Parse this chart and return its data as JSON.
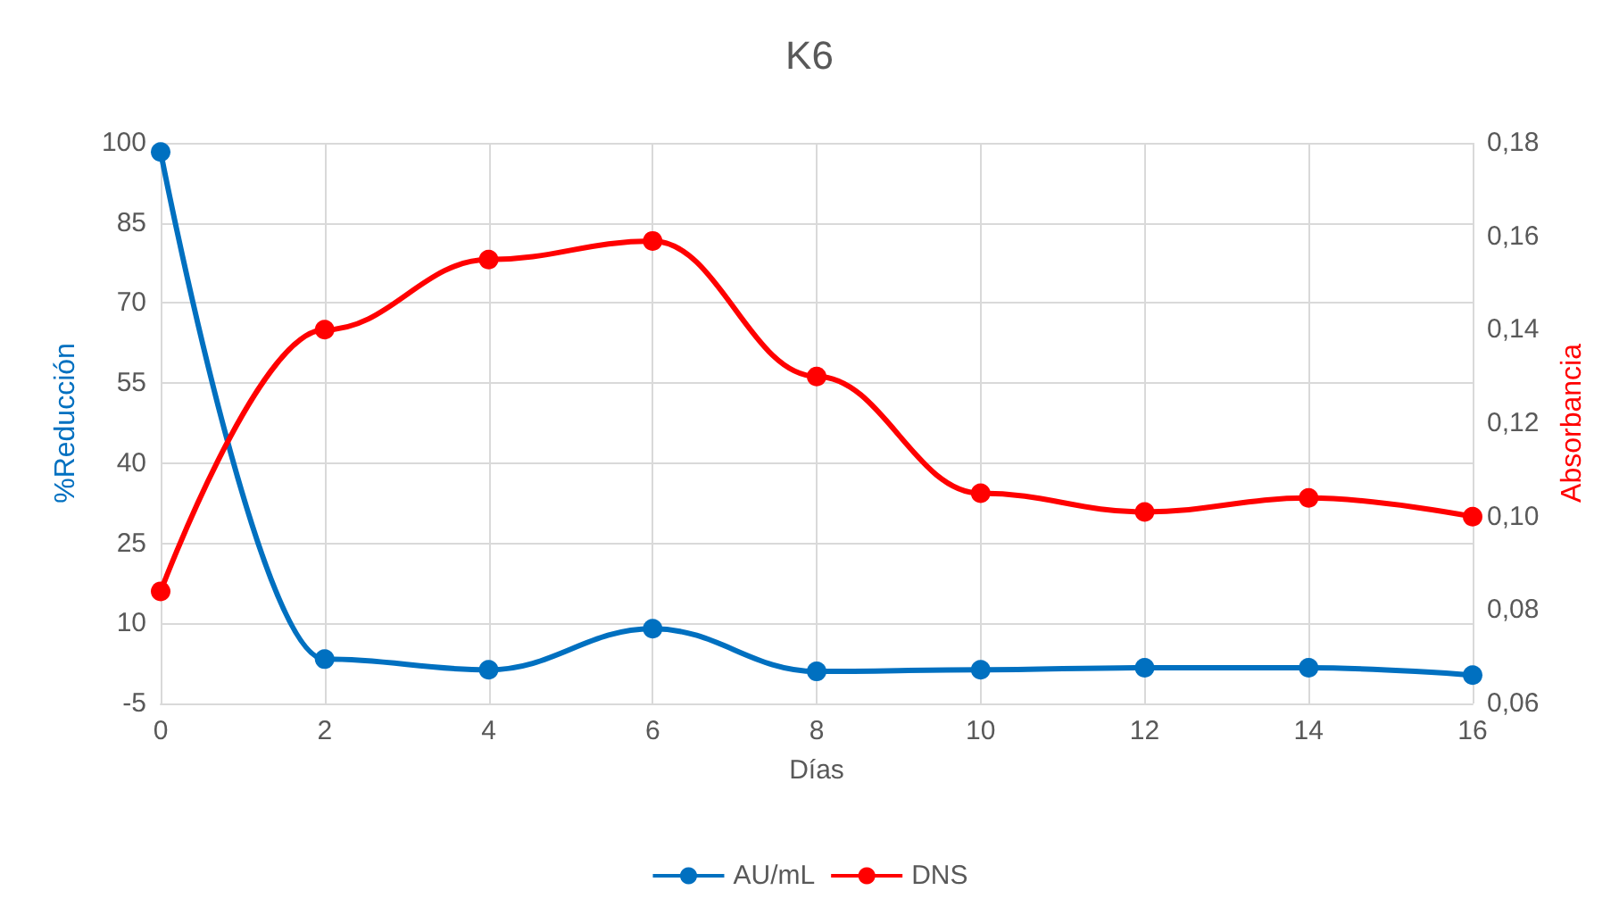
{
  "chart_data": {
    "type": "line",
    "title": "K6",
    "xlabel": "Días",
    "ylabel": "%Reducción",
    "y2label": "Absorbancia",
    "x": [
      0,
      2,
      4,
      6,
      8,
      10,
      12,
      14,
      16
    ],
    "series": [
      {
        "name": "AU/mL",
        "color": "#0070c0",
        "values": [
          98.3,
          3.3,
          1.3,
          9,
          1,
          1.3,
          1.7,
          1.7,
          0.3
        ]
      },
      {
        "name": "DNS",
        "color": "#ff0000",
        "axis": "y2",
        "values": [
          0.084,
          0.14,
          0.155,
          0.159,
          0.13,
          0.105,
          0.101,
          0.104,
          0.1
        ]
      }
    ],
    "xlim": [
      0,
      16
    ],
    "xticks": [
      0,
      2,
      4,
      6,
      8,
      10,
      12,
      14,
      16
    ],
    "ylim": [
      -5,
      100
    ],
    "yticks": [
      -5,
      10,
      25,
      40,
      55,
      70,
      85,
      100
    ],
    "y2lim": [
      0.06,
      0.18
    ],
    "y2ticks": [
      {
        "value": 0.06,
        "label": "0,06"
      },
      {
        "value": 0.08,
        "label": "0,08"
      },
      {
        "value": 0.1,
        "label": "0,10"
      },
      {
        "value": 0.12,
        "label": "0,12"
      },
      {
        "value": 0.14,
        "label": "0,14"
      },
      {
        "value": 0.16,
        "label": "0,16"
      },
      {
        "value": 0.18,
        "label": "0,18"
      }
    ],
    "grid": true,
    "legend": "bottom",
    "marker": "circle",
    "line_style": "solid"
  }
}
